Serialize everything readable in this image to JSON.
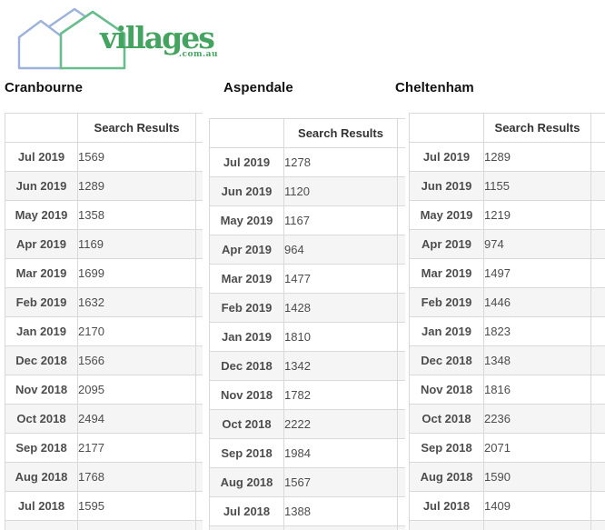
{
  "logo": {
    "brand": "villages",
    "tld": ".com.au",
    "brand_color": "#44a45f",
    "house_green_color": "#69bd8d",
    "house_blue_color": "#9cb2da",
    "icon": "three-houses-icon"
  },
  "column_header": "Search Results",
  "months": [
    "Jul 2019",
    "Jun 2019",
    "May 2019",
    "Apr 2019",
    "Mar 2019",
    "Feb 2019",
    "Jan 2019",
    "Dec 2018",
    "Nov 2018",
    "Oct 2018",
    "Sep 2018",
    "Aug 2018",
    "Jul 2018"
  ],
  "tables": [
    {
      "title": "Cranbourne",
      "values": [
        1569,
        1289,
        1358,
        1169,
        1699,
        1632,
        2170,
        1566,
        2095,
        2494,
        2177,
        1768,
        1595
      ]
    },
    {
      "title": "Aspendale",
      "values": [
        1278,
        1120,
        1167,
        964,
        1477,
        1428,
        1810,
        1342,
        1782,
        2222,
        1984,
        1567,
        1388
      ]
    },
    {
      "title": "Cheltenham",
      "values": [
        1289,
        1155,
        1219,
        974,
        1497,
        1446,
        1823,
        1348,
        1816,
        2236,
        2071,
        1590,
        1409
      ]
    }
  ],
  "chart_data": {
    "type": "table",
    "categories": [
      "Jul 2019",
      "Jun 2019",
      "May 2019",
      "Apr 2019",
      "Mar 2019",
      "Feb 2019",
      "Jan 2019",
      "Dec 2018",
      "Nov 2018",
      "Oct 2018",
      "Sep 2018",
      "Aug 2018",
      "Jul 2018"
    ],
    "value_column": "Search Results",
    "series": [
      {
        "name": "Cranbourne",
        "values": [
          1569,
          1289,
          1358,
          1169,
          1699,
          1632,
          2170,
          1566,
          2095,
          2494,
          2177,
          1768,
          1595
        ]
      },
      {
        "name": "Aspendale",
        "values": [
          1278,
          1120,
          1167,
          964,
          1477,
          1428,
          1810,
          1342,
          1782,
          2222,
          1984,
          1567,
          1388
        ]
      },
      {
        "name": "Cheltenham",
        "values": [
          1289,
          1155,
          1219,
          974,
          1497,
          1446,
          1823,
          1348,
          1816,
          2236,
          2071,
          1590,
          1409
        ]
      }
    ]
  }
}
